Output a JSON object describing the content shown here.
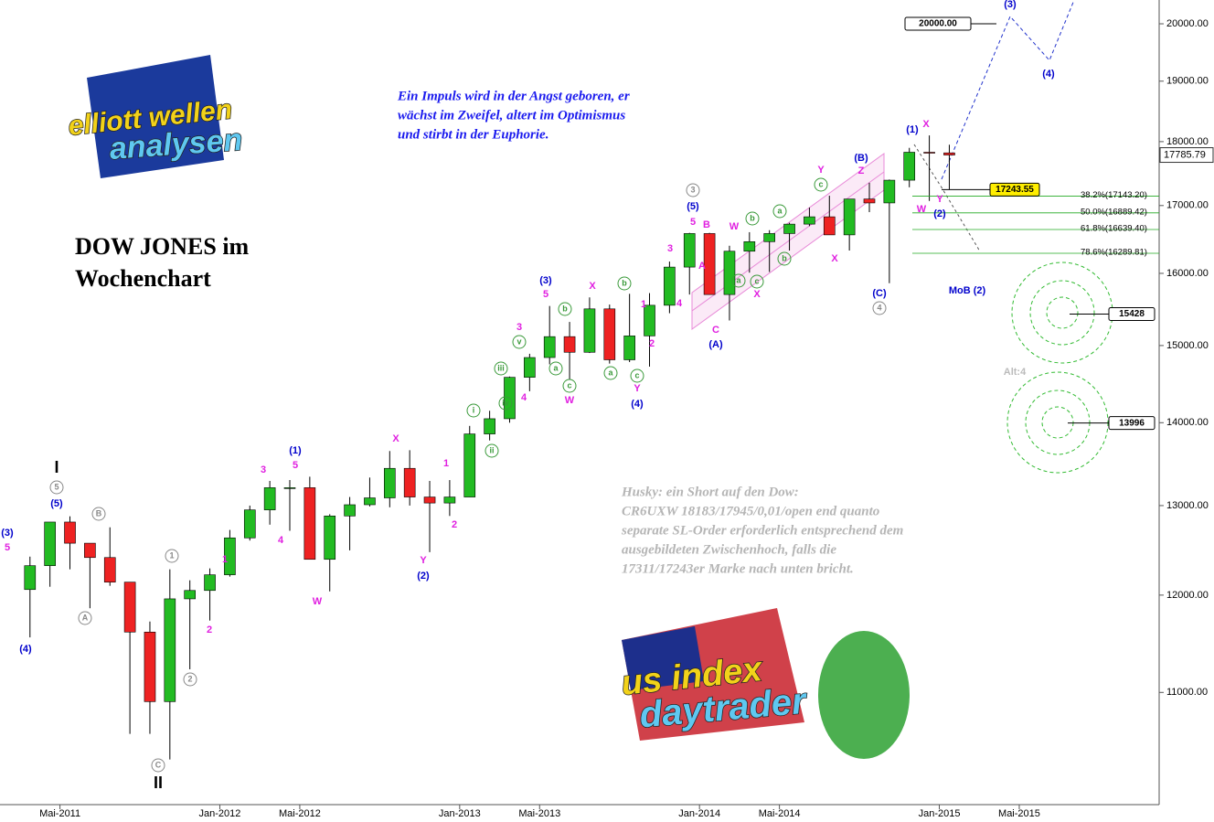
{
  "chart_data": {
    "type": "candlestick",
    "title": [
      "DOW JONES im",
      "Wochenchart"
    ],
    "quote": [
      "Ein Impuls wird in der Angst geboren, er",
      "wächst im Zweifel, altert im Optimismus",
      "und stirbt in der Euphorie."
    ],
    "comment": [
      "Husky: ein Short auf den Dow:",
      "CR6UXW 18183/17945/0,01/open end quanto",
      "separate SL-Order erforderlich entsprechend dem",
      "ausgebildeten Zwischenhoch, falls die",
      "17311/17243er Marke nach unten bricht."
    ],
    "logos": [
      "elliott wellen",
      "analysen",
      "us index",
      "daytrader"
    ],
    "log_scale": true,
    "ylim": [
      9950,
      20430
    ],
    "xlim": [
      "2011-02",
      "2015-12"
    ],
    "yticks": [
      {
        "value": 11000,
        "label": "11000.00"
      },
      {
        "value": 12000,
        "label": "12000.00"
      },
      {
        "value": 13000,
        "label": "13000.00"
      },
      {
        "value": 14000,
        "label": "14000.00"
      },
      {
        "value": 15000,
        "label": "15000.00"
      },
      {
        "value": 16000,
        "label": "16000.00"
      },
      {
        "value": 17000,
        "label": "17000.00"
      },
      {
        "value": 18000,
        "label": "18000.00"
      },
      {
        "value": 19000,
        "label": "19000.00"
      },
      {
        "value": 20000,
        "label": "20000.00"
      }
    ],
    "xticks": [
      {
        "value": "2011-05",
        "label": "Mai-2011"
      },
      {
        "value": "2012-01",
        "label": "Jan-2012"
      },
      {
        "value": "2012-05",
        "label": "Mai-2012"
      },
      {
        "value": "2013-01",
        "label": "Jan-2013"
      },
      {
        "value": "2013-05",
        "label": "Mai-2013"
      },
      {
        "value": "2014-01",
        "label": "Jan-2014"
      },
      {
        "value": "2014-05",
        "label": "Mai-2014"
      },
      {
        "value": "2015-01",
        "label": "Jan-2015"
      },
      {
        "value": "2015-05",
        "label": "Mai-2015"
      }
    ],
    "up_color": "#22bb22",
    "down_color": "#ee2222",
    "x": [
      "2011-03",
      "2011-04",
      "2011-05",
      "2011-06",
      "2011-07",
      "2011-08",
      "2011-09",
      "2011-10",
      "2011-11",
      "2011-12",
      "2012-01",
      "2012-02",
      "2012-03",
      "2012-04",
      "2012-05",
      "2012-06",
      "2012-07",
      "2012-08",
      "2012-09",
      "2012-10",
      "2012-11",
      "2012-12",
      "2013-01",
      "2013-02",
      "2013-03",
      "2013-04",
      "2013-05",
      "2013-06",
      "2013-07",
      "2013-08",
      "2013-09",
      "2013-10",
      "2013-11",
      "2013-12",
      "2014-01",
      "2014-02",
      "2014-03",
      "2014-04",
      "2014-05",
      "2014-06",
      "2014-07",
      "2014-08",
      "2014-09",
      "2014-10",
      "2014-11",
      "2014-12",
      "2015-01"
    ],
    "open": [
      12060,
      12320,
      12810,
      12570,
      12410,
      12140,
      11610,
      10910,
      11960,
      12050,
      12220,
      12630,
      12950,
      13210,
      13210,
      12390,
      12880,
      13010,
      13090,
      13440,
      13100,
      13030,
      13100,
      13860,
      14050,
      14580,
      14840,
      15120,
      14910,
      15500,
      14810,
      15130,
      15550,
      16090,
      16580,
      15700,
      16320,
      16460,
      16580,
      16720,
      16830,
      16560,
      17100,
      17040,
      17390,
      17830,
      17820
    ],
    "high": [
      12420,
      12810,
      12876,
      12570,
      12750,
      12140,
      11720,
      12280,
      12160,
      12290,
      12720,
      13000,
      13290,
      13300,
      13340,
      12900,
      13100,
      13330,
      13650,
      13660,
      13290,
      13300,
      13960,
      14150,
      14590,
      14890,
      15540,
      15320,
      15660,
      15560,
      15710,
      15720,
      16170,
      16590,
      16590,
      16400,
      16600,
      16630,
      16740,
      16970,
      17150,
      17100,
      17350,
      17400,
      17900,
      18100,
      17950
    ],
    "low": [
      11555,
      12090,
      12280,
      11860,
      12100,
      10600,
      10600,
      10360,
      11230,
      11730,
      12200,
      12600,
      12780,
      12710,
      12400,
      12040,
      12490,
      12990,
      12980,
      13000,
      12470,
      12880,
      13100,
      13780,
      14000,
      14400,
      14750,
      14550,
      14900,
      14760,
      14780,
      14720,
      15440,
      15700,
      15700,
      15340,
      16010,
      16020,
      16330,
      16690,
      16560,
      16330,
      16900,
      15860,
      17280,
      17070,
      17250
    ],
    "close": [
      12320,
      12810,
      12570,
      12410,
      12140,
      11610,
      10910,
      11960,
      12050,
      12220,
      12630,
      12950,
      13210,
      13210,
      12390,
      12880,
      13010,
      13090,
      13440,
      13100,
      13030,
      13100,
      13860,
      14050,
      14580,
      14840,
      15120,
      14910,
      15500,
      14810,
      15130,
      15550,
      16090,
      16580,
      15700,
      16320,
      16460,
      16580,
      16720,
      16830,
      16560,
      17100,
      17040,
      17390,
      17830,
      17820,
      17785.79
    ],
    "last_price": 17785.79,
    "price_boxes": [
      {
        "value": 20000,
        "label": "20000.00"
      },
      17243.55,
      15428,
      13996
    ],
    "fib_levels": [
      {
        "value": 17143.2,
        "label": "38.2%(17143.20)"
      },
      {
        "value": 16889.42,
        "label": "50.0%(16889.42)"
      },
      {
        "value": 16639.4,
        "label": "61.8%(16639.40)"
      },
      {
        "value": 16289.81,
        "label": "78.6%(16289.81)"
      }
    ],
    "annotations": [
      "(3)",
      "5",
      "(4)",
      "I",
      "5",
      "(5)",
      "B",
      "A",
      "1",
      "1",
      "2",
      "2",
      "C",
      "II",
      "3",
      "(1)",
      "5",
      "4",
      "W",
      "X",
      "Y",
      "(2)",
      "1",
      "2",
      "i",
      "ii",
      "iii",
      "iv",
      "v",
      "3",
      "4",
      "(3)",
      "5",
      "a",
      "b",
      "c",
      "W",
      "X",
      "a",
      "b",
      "c",
      "Y",
      "(4)",
      "1",
      "2",
      "3",
      "4",
      "5",
      "(5)",
      "3",
      "A",
      "B",
      "C",
      "(A)",
      "W",
      "a",
      "b",
      "c",
      "X",
      "a",
      "b",
      "Y",
      "c",
      "X",
      "(B)",
      "Z",
      "(C)",
      "4",
      "(1)",
      "X",
      "W",
      "Y",
      "(2)",
      "(3)",
      "(4)",
      "MoB (2)",
      "Alt:4"
    ]
  }
}
